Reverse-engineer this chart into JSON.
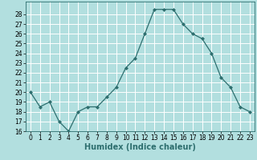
{
  "x": [
    0,
    1,
    2,
    3,
    4,
    5,
    6,
    7,
    8,
    9,
    10,
    11,
    12,
    13,
    14,
    15,
    16,
    17,
    18,
    19,
    20,
    21,
    22,
    23
  ],
  "y": [
    20.0,
    18.5,
    19.0,
    17.0,
    16.0,
    18.0,
    18.5,
    18.5,
    19.5,
    20.5,
    22.5,
    23.5,
    26.0,
    28.5,
    28.5,
    28.5,
    27.0,
    26.0,
    25.5,
    24.0,
    21.5,
    20.5,
    18.5,
    18.0
  ],
  "xlabel": "Humidex (Indice chaleur)",
  "xlim": [
    -0.5,
    23.5
  ],
  "ylim": [
    16,
    29
  ],
  "yticks": [
    16,
    17,
    18,
    19,
    20,
    21,
    22,
    23,
    24,
    25,
    26,
    27,
    28
  ],
  "xticks": [
    0,
    1,
    2,
    3,
    4,
    5,
    6,
    7,
    8,
    9,
    10,
    11,
    12,
    13,
    14,
    15,
    16,
    17,
    18,
    19,
    20,
    21,
    22,
    23
  ],
  "line_color": "#2d6e6e",
  "marker": "D",
  "marker_size": 2.0,
  "bg_color": "#b2dfdf",
  "grid_color": "#ffffff",
  "xlabel_fontsize": 7,
  "tick_fontsize": 5.5
}
